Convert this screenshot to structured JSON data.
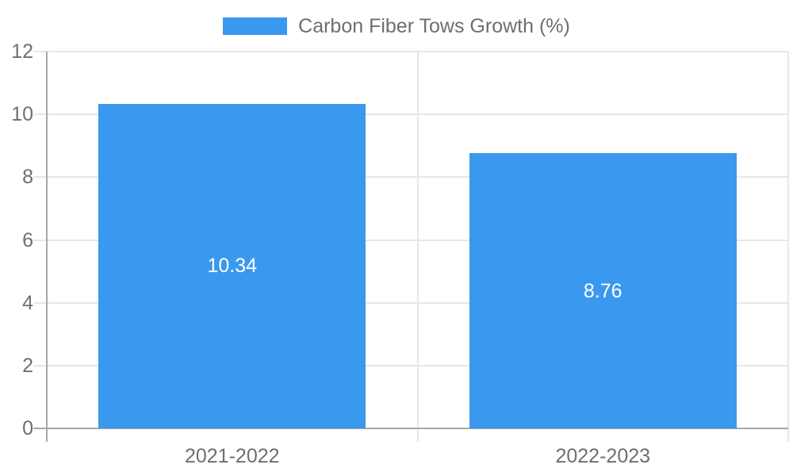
{
  "legend": {
    "label": "Carbon Fiber Tows Growth (%)"
  },
  "colors": {
    "bar": "#3A99EE",
    "grid": "#E7E7E7",
    "axis": "#A8A8A8",
    "tick_text": "#6E6E6E",
    "value_text": "#FFFFFF"
  },
  "chart_data": {
    "type": "bar",
    "title": "",
    "categories": [
      "2021-2022",
      "2022-2023"
    ],
    "values": [
      10.34,
      8.76
    ],
    "value_labels": [
      "10.34",
      "8.76"
    ],
    "legend": [
      "Carbon Fiber Tows Growth (%)"
    ],
    "legend_position": "top",
    "xlabel": "",
    "ylabel": "",
    "ylim": [
      0,
      12
    ],
    "yticks": [
      0,
      2,
      4,
      6,
      8,
      10,
      12
    ],
    "grid": true
  }
}
